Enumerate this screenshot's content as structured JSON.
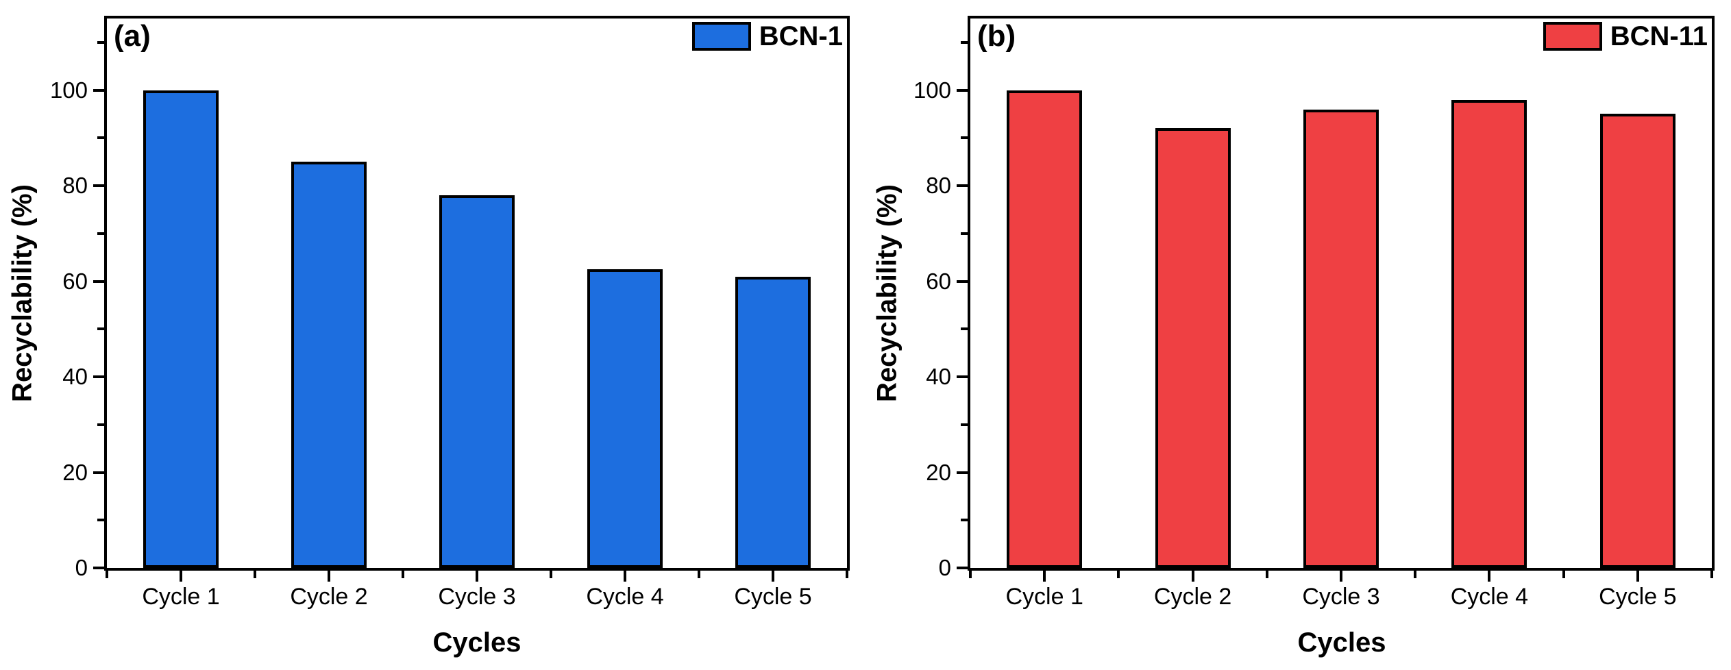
{
  "chart_data": [
    {
      "type": "bar",
      "panel_label": "(a)",
      "title": "",
      "xlabel": "Cycles",
      "ylabel": "Recyclability (%)",
      "categories": [
        "Cycle 1",
        "Cycle 2",
        "Cycle 3",
        "Cycle 4",
        "Cycle 5"
      ],
      "series": [
        {
          "name": "BCN-1",
          "color": "#1d6edf",
          "values": [
            100,
            85,
            78,
            62.5,
            61
          ]
        }
      ],
      "ylim": [
        0,
        115
      ],
      "yticks": [
        0,
        20,
        40,
        60,
        80,
        100
      ],
      "yticks_minor": [
        10,
        30,
        50,
        70,
        90,
        110
      ],
      "bar_border_color": "#000000",
      "grid": false,
      "legend_position": "top-right"
    },
    {
      "type": "bar",
      "panel_label": "(b)",
      "title": "",
      "xlabel": "Cycles",
      "ylabel": "Recyclability (%)",
      "categories": [
        "Cycle 1",
        "Cycle 2",
        "Cycle 3",
        "Cycle 4",
        "Cycle 5"
      ],
      "series": [
        {
          "name": "BCN-11",
          "color": "#ef4043",
          "values": [
            100,
            92,
            96,
            98,
            95
          ]
        }
      ],
      "ylim": [
        0,
        115
      ],
      "yticks": [
        0,
        20,
        40,
        60,
        80,
        100
      ],
      "yticks_minor": [
        10,
        30,
        50,
        70,
        90,
        110
      ],
      "bar_border_color": "#000000",
      "grid": false,
      "legend_position": "top-right"
    }
  ]
}
